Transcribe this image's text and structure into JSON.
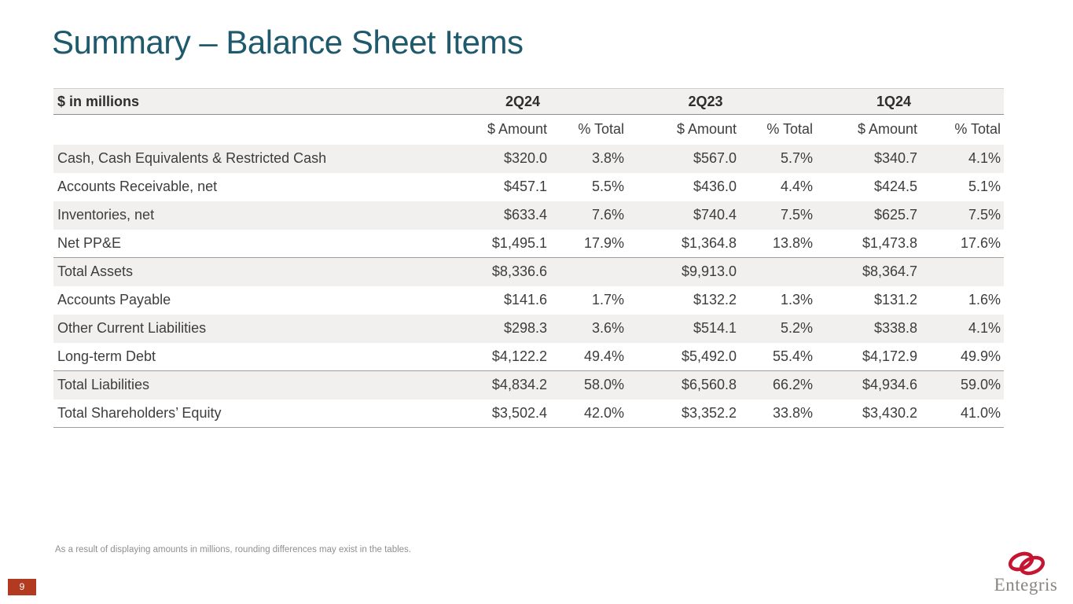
{
  "slide": {
    "title": "Summary – Balance Sheet Items",
    "footnote": "As a result of displaying amounts in millions, rounding differences may exist in the tables.",
    "page_number": "9"
  },
  "logo": {
    "company": "Entegris",
    "wordmark": "Entegris",
    "rings_icon": "interlocking-rings-icon"
  },
  "colors": {
    "title_teal": "#1e5a6c",
    "row_stripe": "#f2f0ee",
    "page_badge_red": "#b23a20",
    "logo_red": "#c41531",
    "logo_gray": "#8a8480",
    "table_text": "#3d3d3d"
  },
  "table": {
    "corner_label": "$ in millions",
    "column_groups": [
      {
        "label": "2Q24"
      },
      {
        "label": "2Q23"
      },
      {
        "label": "1Q24"
      }
    ],
    "sub_headers": [
      "$ Amount",
      "% Total",
      "$ Amount",
      "% Total",
      "$ Amount",
      "% Total"
    ],
    "rows": [
      {
        "label": "Cash, Cash Equivalents & Restricted Cash",
        "values": [
          "$320.0",
          "3.8%",
          "$567.0",
          "5.7%",
          "$340.7",
          "4.1%"
        ],
        "divider_below": false
      },
      {
        "label": "Accounts Receivable, net",
        "values": [
          "$457.1",
          "5.5%",
          "$436.0",
          "4.4%",
          "$424.5",
          "5.1%"
        ],
        "divider_below": false
      },
      {
        "label": "Inventories, net",
        "values": [
          "$633.4",
          "7.6%",
          "$740.4",
          "7.5%",
          "$625.7",
          "7.5%"
        ],
        "divider_below": false
      },
      {
        "label": "Net PP&E",
        "values": [
          "$1,495.1",
          "17.9%",
          "$1,364.8",
          "13.8%",
          "$1,473.8",
          "17.6%"
        ],
        "divider_below": true
      },
      {
        "label": "Total Assets",
        "values": [
          "$8,336.6",
          "",
          "$9,913.0",
          "",
          "$8,364.7",
          ""
        ],
        "divider_below": false
      },
      {
        "label": "Accounts Payable",
        "values": [
          "$141.6",
          "1.7%",
          "$132.2",
          "1.3%",
          "$131.2",
          "1.6%"
        ],
        "divider_below": false
      },
      {
        "label": "Other Current Liabilities",
        "values": [
          "$298.3",
          "3.6%",
          "$514.1",
          "5.2%",
          "$338.8",
          "4.1%"
        ],
        "divider_below": false
      },
      {
        "label": "Long-term Debt",
        "values": [
          "$4,122.2",
          "49.4%",
          "$5,492.0",
          "55.4%",
          "$4,172.9",
          "49.9%"
        ],
        "divider_below": true
      },
      {
        "label": "Total Liabilities",
        "values": [
          "$4,834.2",
          "58.0%",
          "$6,560.8",
          "66.2%",
          "$4,934.6",
          "59.0%"
        ],
        "divider_below": false
      },
      {
        "label": "Total Shareholders’ Equity",
        "values": [
          "$3,502.4",
          "42.0%",
          "$3,352.2",
          "33.8%",
          "$3,430.2",
          "41.0%"
        ],
        "divider_below": true
      }
    ]
  }
}
